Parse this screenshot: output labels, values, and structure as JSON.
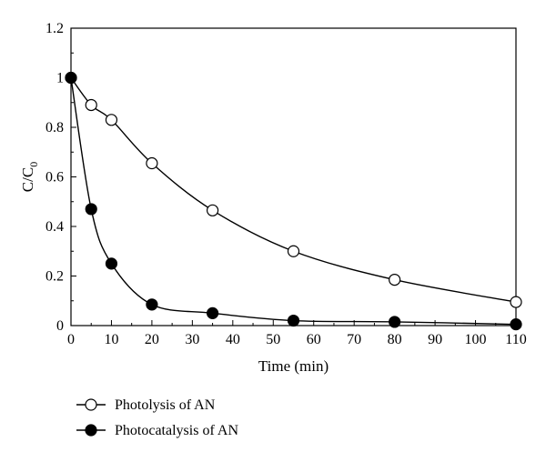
{
  "chart_data": {
    "type": "scatter",
    "xlabel": "Time (min)",
    "ylabel": {
      "main": "C/C",
      "sub": "0"
    },
    "xlim": [
      0,
      110
    ],
    "ylim": [
      0,
      1.2
    ],
    "xticks": [
      "0",
      "10",
      "20",
      "30",
      "40",
      "50",
      "60",
      "70",
      "80",
      "90",
      "100",
      "110"
    ],
    "xtick_values": [
      0,
      10,
      20,
      30,
      40,
      50,
      60,
      70,
      80,
      90,
      100,
      110
    ],
    "yticks": [
      "0",
      "0.2",
      "0.4",
      "0.6",
      "0.8",
      "1",
      "1.2"
    ],
    "ytick_values": [
      0,
      0.2,
      0.4,
      0.6,
      0.8,
      1.0,
      1.2
    ],
    "grid": false,
    "legend_position": "bottom-left, below plot",
    "series": [
      {
        "name": "Photolysis of AN",
        "marker": "open-circle",
        "x": [
          0,
          5,
          10,
          20,
          35,
          55,
          80,
          110
        ],
        "y": [
          1.0,
          0.89,
          0.83,
          0.655,
          0.465,
          0.3,
          0.185,
          0.095
        ]
      },
      {
        "name": "Photocatalysis of AN",
        "marker": "filled-circle",
        "x": [
          0,
          5,
          10,
          20,
          35,
          55,
          80,
          110
        ],
        "y": [
          1.0,
          0.47,
          0.25,
          0.085,
          0.05,
          0.02,
          0.015,
          0.005
        ]
      }
    ]
  }
}
